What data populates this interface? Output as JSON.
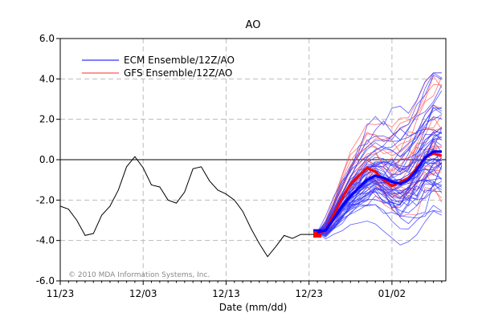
{
  "chart_data": {
    "type": "line",
    "title": "AO",
    "xlabel": "Date (mm/dd)",
    "ylabel": "",
    "x_ticks": [
      "11/23",
      "12/03",
      "12/13",
      "12/23",
      "01/02"
    ],
    "x_tick_days": [
      0,
      10,
      20,
      30,
      40
    ],
    "xlim_days": [
      0,
      46.5
    ],
    "ylim": [
      -6,
      6
    ],
    "y_ticks": [
      "-6.0",
      "-4.0",
      "-2.0",
      "0.0",
      "2.0",
      "4.0",
      "6.0"
    ],
    "y_tick_values": [
      -6,
      -4,
      -2,
      0,
      2,
      4,
      6
    ],
    "grid": true,
    "legend_position": "top-left",
    "copyright": "© 2010 MDA Information Systems, Inc.",
    "observed": {
      "color": "#000000",
      "x_days": [
        0,
        1,
        2,
        3,
        4,
        5,
        6,
        7,
        8,
        9,
        10,
        11,
        12,
        13,
        14,
        15,
        16,
        17,
        18,
        19,
        20,
        21,
        22,
        23,
        24,
        25,
        26,
        27,
        28,
        29,
        30,
        31
      ],
      "values": [
        -2.3,
        -2.45,
        -3.0,
        -3.75,
        -3.65,
        -2.75,
        -2.3,
        -1.5,
        -0.35,
        0.15,
        -0.4,
        -1.25,
        -1.35,
        -2.0,
        -2.15,
        -1.6,
        -0.45,
        -0.35,
        -1.05,
        -1.5,
        -1.7,
        -2.0,
        -2.55,
        -3.4,
        -4.15,
        -4.8,
        -4.3,
        -3.75,
        -3.9,
        -3.7,
        -3.7,
        -3.7
      ]
    },
    "series": [
      {
        "name": "ECM Ensemble/12Z/AO",
        "color": "#3333ff",
        "mean_color": "#0000ff",
        "start_day": 31,
        "end_day": 46,
        "start_value": -3.6,
        "member_count": 51,
        "mean_x_days": [
          31,
          32,
          33,
          34,
          35,
          36,
          37,
          38,
          39,
          40,
          41,
          42,
          43,
          44,
          45,
          46
        ],
        "mean_values": [
          -3.6,
          -3.5,
          -2.9,
          -2.3,
          -1.8,
          -1.4,
          -1.0,
          -0.8,
          -0.9,
          -1.1,
          -1.2,
          -1.0,
          -0.5,
          0.1,
          0.4,
          0.4
        ]
      },
      {
        "name": "GFS Ensemble/12Z/AO",
        "color": "#ff5555",
        "mean_color": "#ff0000",
        "start_day": 31,
        "end_day": 46,
        "start_value": -3.7,
        "member_count": 21,
        "mean_x_days": [
          31,
          32,
          33,
          34,
          35,
          36,
          37,
          38,
          39,
          40,
          41,
          42,
          43,
          44,
          45,
          46
        ],
        "mean_values": [
          -3.7,
          -3.5,
          -2.7,
          -1.9,
          -1.2,
          -0.8,
          -0.4,
          -0.6,
          -1.0,
          -1.3,
          -1.1,
          -0.9,
          -0.4,
          0.1,
          0.3,
          0.2
        ]
      }
    ]
  }
}
